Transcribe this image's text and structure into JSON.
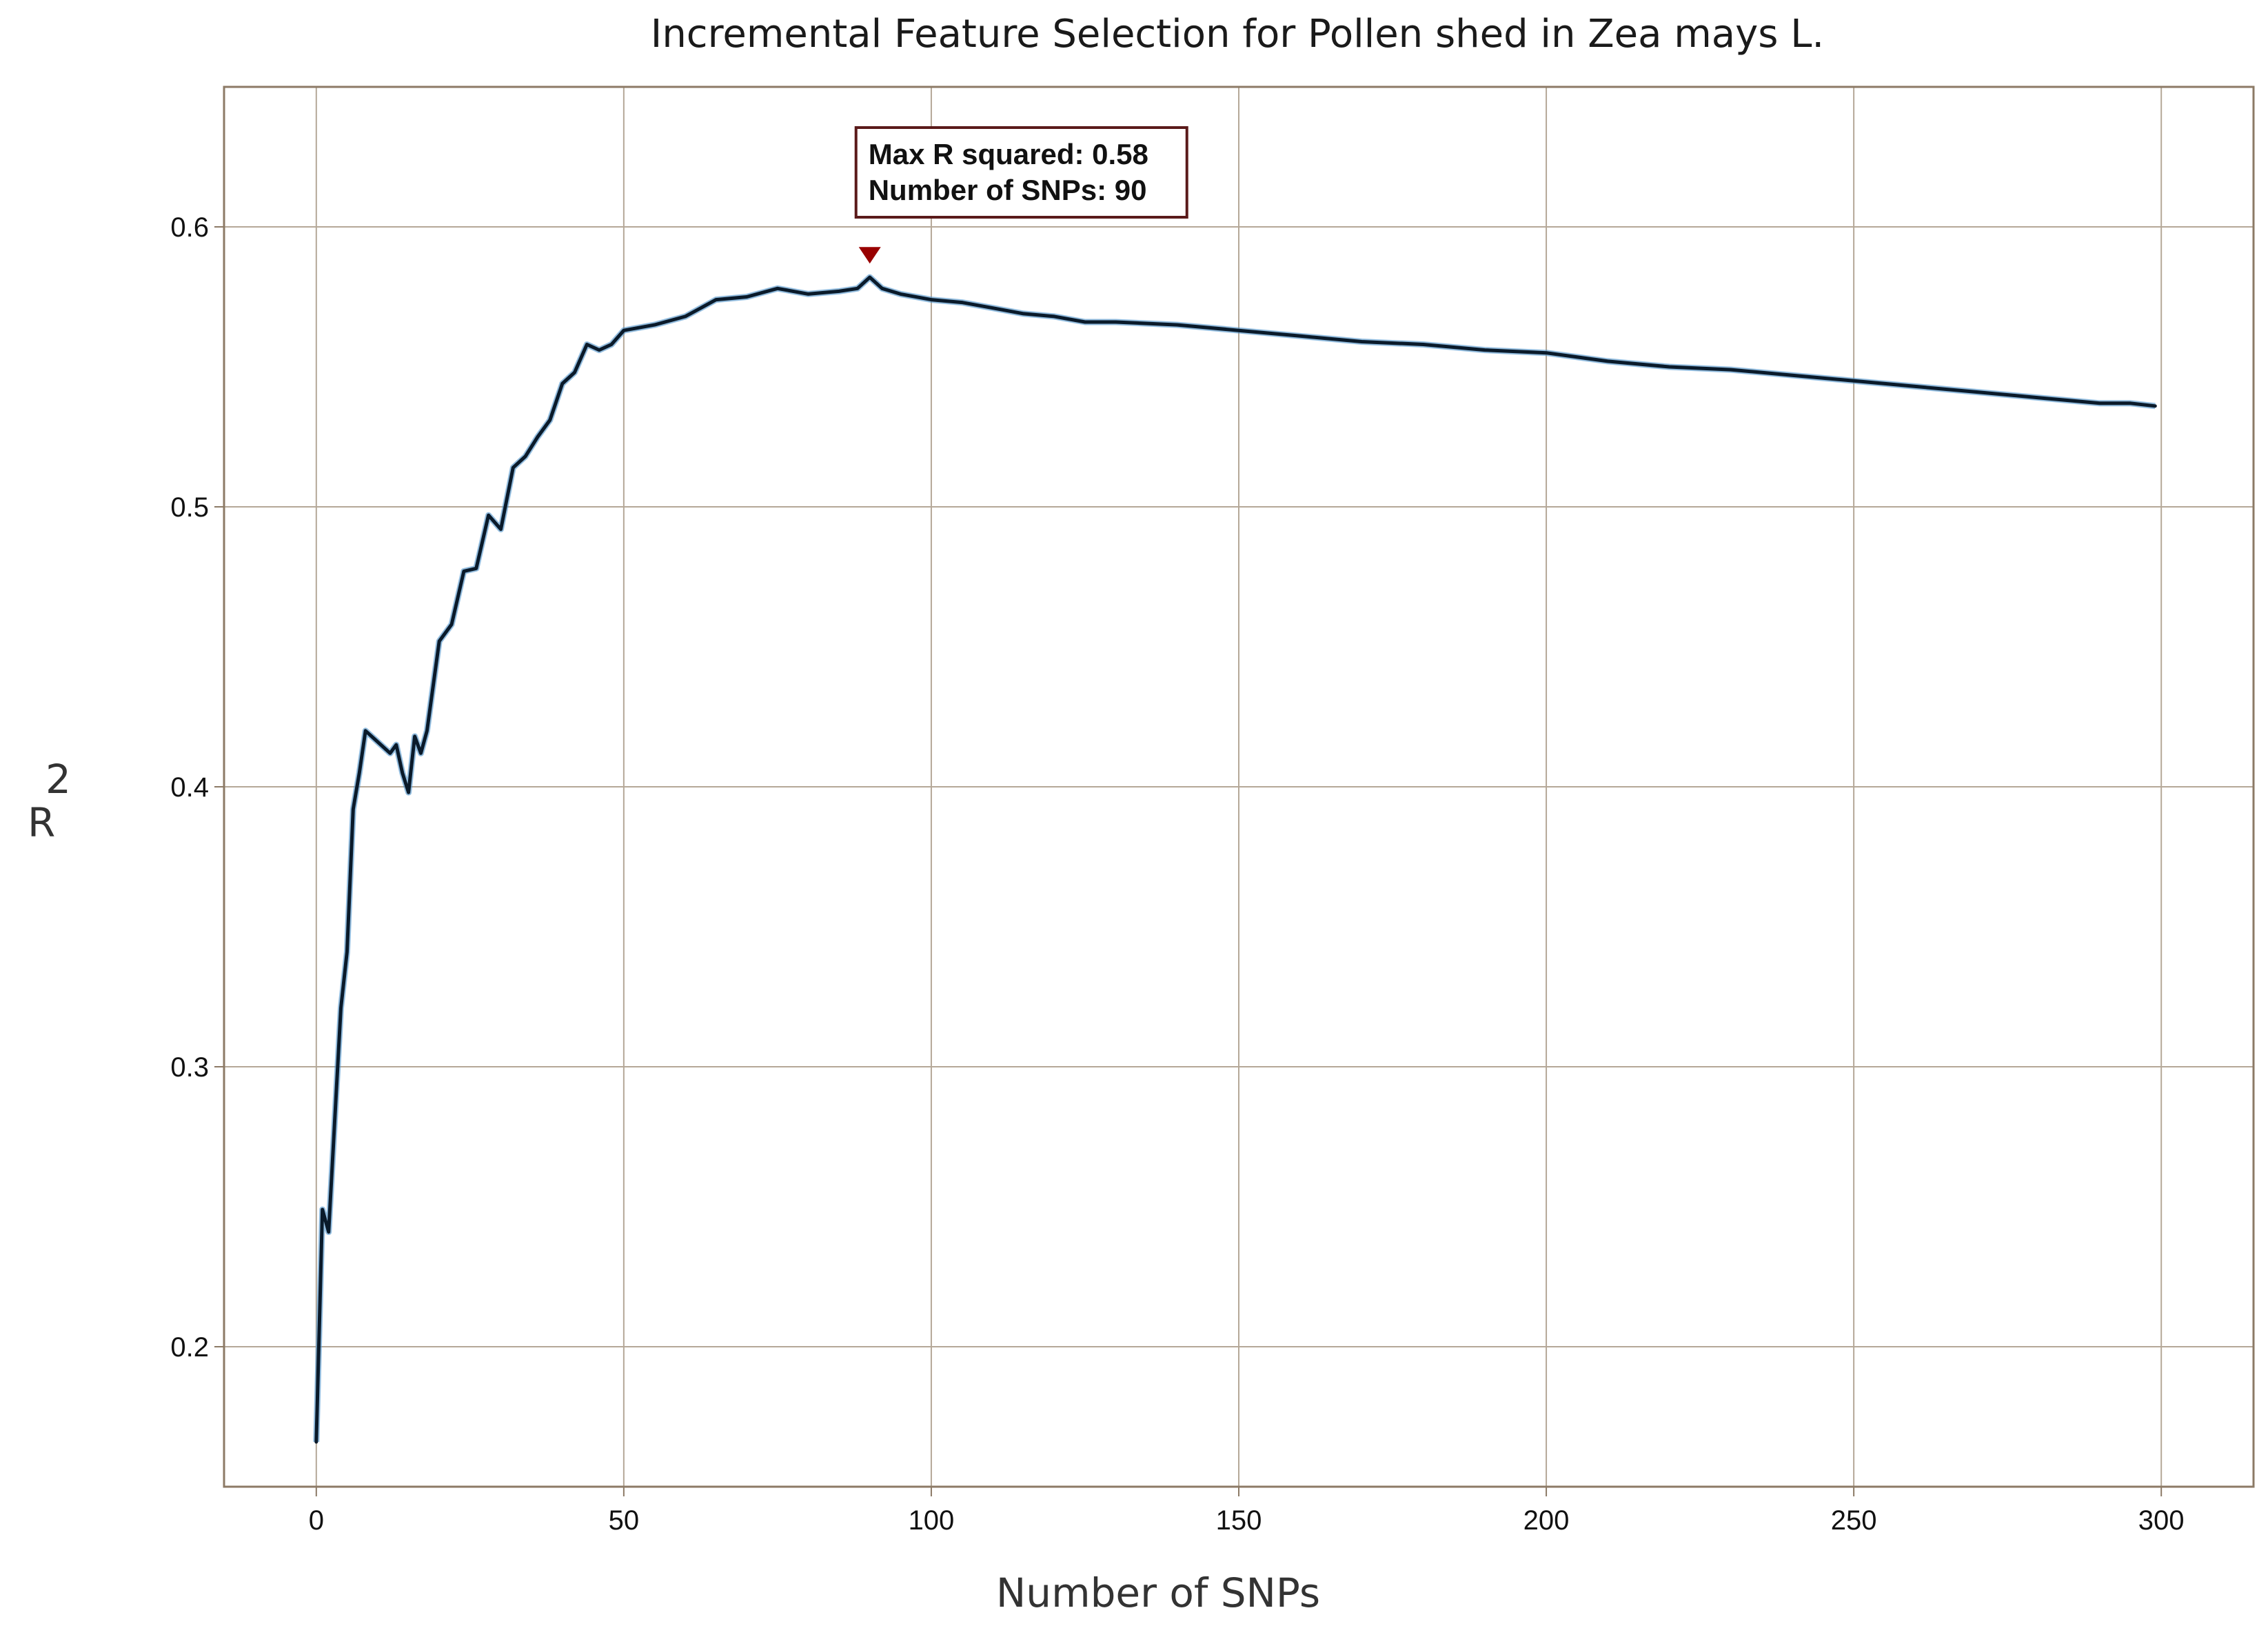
{
  "chart_data": {
    "type": "line",
    "title": "Incremental Feature Selection for Pollen shed in Zea mays L.",
    "xlabel": "Number of SNPs",
    "ylabel": "R 2",
    "xlim": [
      -15,
      315
    ],
    "ylim": [
      0.15,
      0.65
    ],
    "x_ticks": [
      0,
      50,
      100,
      150,
      200,
      250,
      300
    ],
    "x_tick_labels": [
      "0",
      "50",
      "100",
      "150",
      "200",
      "250",
      "300"
    ],
    "y_ticks": [
      0.2,
      0.3,
      0.4,
      0.5,
      0.6
    ],
    "y_tick_labels": [
      "0.2",
      "0.3",
      "0.4",
      "0.5",
      "0.6"
    ],
    "grid": true,
    "colors": {
      "line": "#0a1a2a",
      "line_shadow": "#4a90c8",
      "grid": "#b5a898",
      "frame": "#8c7a66",
      "marker": "#990000"
    },
    "series": [
      {
        "x": [
          0,
          1,
          2,
          3,
          4,
          5,
          6,
          7,
          8,
          10,
          12,
          13,
          14,
          15,
          16,
          17,
          18,
          20,
          22,
          24,
          26,
          28,
          30,
          32,
          34,
          36,
          38,
          40,
          42,
          44,
          46,
          48,
          50,
          55,
          60,
          65,
          70,
          75,
          80,
          85,
          88,
          90,
          92,
          95,
          100,
          105,
          110,
          115,
          120,
          125,
          130,
          140,
          150,
          160,
          170,
          180,
          190,
          200,
          210,
          220,
          230,
          240,
          250,
          260,
          270,
          280,
          290,
          295,
          299
        ],
        "y": [
          0.166,
          0.249,
          0.241,
          0.281,
          0.321,
          0.341,
          0.392,
          0.405,
          0.42,
          0.416,
          0.412,
          0.415,
          0.405,
          0.398,
          0.418,
          0.412,
          0.42,
          0.452,
          0.458,
          0.477,
          0.478,
          0.497,
          0.492,
          0.514,
          0.518,
          0.525,
          0.531,
          0.544,
          0.548,
          0.558,
          0.556,
          0.558,
          0.563,
          0.565,
          0.568,
          0.574,
          0.575,
          0.578,
          0.576,
          0.577,
          0.578,
          0.582,
          0.578,
          0.576,
          0.574,
          0.573,
          0.571,
          0.569,
          0.568,
          0.566,
          0.566,
          0.565,
          0.563,
          0.561,
          0.559,
          0.558,
          0.556,
          0.555,
          0.552,
          0.55,
          0.549,
          0.547,
          0.545,
          0.543,
          0.541,
          0.539,
          0.537,
          0.537,
          0.536
        ]
      }
    ],
    "annotation": {
      "line1": "Max R squared: 0.58",
      "line2": "Number of SNPs: 90",
      "marker_x": 90,
      "marker_y": 0.58
    }
  }
}
